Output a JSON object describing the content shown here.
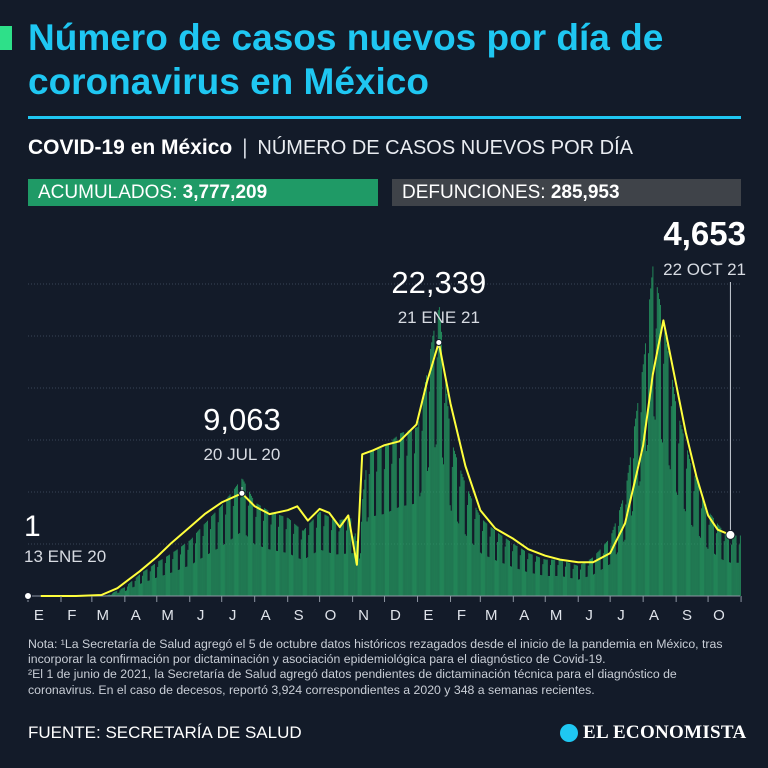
{
  "header": {
    "title": "Número de casos nuevos por día de coronavirus en México",
    "subtitle_bold": "COVID-19 en México",
    "subtitle_sep": "|",
    "subtitle_desc": "NÚMERO DE CASOS NUEVOS POR DÍA"
  },
  "stats": {
    "acumulados_label": "ACUMULADOS:",
    "acumulados_value": "3,777,209",
    "defunciones_label": "DEFUNCIONES:",
    "defunciones_value": "285,953"
  },
  "colors": {
    "background": "#131b29",
    "title": "#1fc7f2",
    "bars": "#27a566",
    "line": "#ffff3c",
    "stat_acumulados": "#1f9a66",
    "stat_defunciones": "#3f4349"
  },
  "chart_data": {
    "type": "bar",
    "title": "",
    "x_unit": "month",
    "x_start": "2020-01",
    "x_end": "2021-10",
    "x_tick_labels": [
      "E",
      "F",
      "M",
      "A",
      "M",
      "J",
      "J",
      "A",
      "S",
      "O",
      "N",
      "D",
      "E",
      "F",
      "M",
      "A",
      "M",
      "J",
      "J",
      "A",
      "S",
      "O"
    ],
    "ylim": [
      0,
      28000
    ],
    "grid": true,
    "legend": "none",
    "annotations": [
      {
        "value": "1",
        "date": "13 ENE 20",
        "date_iso": "2020-01-13"
      },
      {
        "value": "9,063",
        "date": "20 JUL 20",
        "date_iso": "2020-07-20"
      },
      {
        "value": "22,339",
        "date": "21 ENE 21",
        "date_iso": "2021-01-21"
      },
      {
        "value": "4,653",
        "date": "22 OCT 21",
        "date_iso": "2021-10-22"
      }
    ],
    "series": [
      {
        "type": "bars",
        "dates": [
          "2020-01-13",
          "2020-02-15",
          "2020-03-15",
          "2020-04-01",
          "2020-04-15",
          "2020-05-01",
          "2020-05-15",
          "2020-06-01",
          "2020-06-15",
          "2020-07-01",
          "2020-07-20",
          "2020-08-01",
          "2020-08-15",
          "2020-09-01",
          "2020-09-15",
          "2020-10-01",
          "2020-10-15",
          "2020-11-01",
          "2020-11-05",
          "2020-11-15",
          "2020-12-01",
          "2020-12-15",
          "2021-01-01",
          "2021-01-15",
          "2021-01-21",
          "2021-02-01",
          "2021-02-15",
          "2021-03-01",
          "2021-03-15",
          "2021-04-01",
          "2021-04-15",
          "2021-05-01",
          "2021-05-15",
          "2021-06-01",
          "2021-06-15",
          "2021-07-01",
          "2021-07-15",
          "2021-08-01",
          "2021-08-10",
          "2021-08-20",
          "2021-09-01",
          "2021-09-15",
          "2021-10-01",
          "2021-10-15",
          "2021-10-22"
        ],
        "values": [
          1,
          0,
          50,
          700,
          1700,
          2600,
          3300,
          4300,
          5600,
          7000,
          9063,
          7200,
          6500,
          6000,
          5000,
          6500,
          5800,
          6000,
          3700,
          11000,
          11500,
          12500,
          13000,
          20000,
          22339,
          12000,
          8500,
          6000,
          5000,
          4000,
          3300,
          2800,
          2800,
          2300,
          3000,
          4500,
          8000,
          18000,
          25500,
          21000,
          14500,
          10000,
          6500,
          5000,
          4653
        ]
      },
      {
        "type": "line",
        "name": "",
        "dates": [
          "2020-01-13",
          "2020-02-15",
          "2020-03-10",
          "2020-03-25",
          "2020-04-15",
          "2020-05-01",
          "2020-05-15",
          "2020-06-01",
          "2020-06-15",
          "2020-07-01",
          "2020-07-20",
          "2020-08-01",
          "2020-08-15",
          "2020-09-01",
          "2020-09-10",
          "2020-09-20",
          "2020-10-01",
          "2020-10-10",
          "2020-10-20",
          "2020-10-28",
          "2020-11-05",
          "2020-11-10",
          "2020-11-20",
          "2020-12-01",
          "2020-12-15",
          "2020-12-31",
          "2021-01-10",
          "2021-01-21",
          "2021-02-01",
          "2021-02-15",
          "2021-03-01",
          "2021-03-15",
          "2021-04-01",
          "2021-04-15",
          "2021-05-01",
          "2021-05-15",
          "2021-06-01",
          "2021-06-15",
          "2021-07-01",
          "2021-07-15",
          "2021-08-01",
          "2021-08-10",
          "2021-08-20",
          "2021-09-01",
          "2021-09-10",
          "2021-09-20",
          "2021-10-01",
          "2021-10-10",
          "2021-10-22"
        ],
        "values": [
          0,
          0,
          80,
          600,
          1900,
          3000,
          4100,
          5300,
          6300,
          7200,
          7900,
          6900,
          6300,
          6600,
          6900,
          5800,
          6700,
          6400,
          5300,
          6200,
          2400,
          10900,
          11200,
          11600,
          11900,
          13200,
          16500,
          19500,
          14800,
          10000,
          6600,
          5200,
          4400,
          3600,
          3100,
          2800,
          2600,
          2600,
          3300,
          5600,
          11600,
          17000,
          21200,
          16300,
          12600,
          9200,
          6200,
          5100,
          4700
        ]
      }
    ]
  },
  "notes": {
    "line1": "Nota: ¹La Secretaría de Salud agregó el 5 de octubre datos históricos rezagados desde el inicio de la pandemia en México, tras incorporar la confirmación por dictaminación y asociación epidemiológica para el diagnóstico de Covid-19.",
    "line2": "²El 1 de junio de 2021, la Secretaría de Salud agregó datos pendientes de dictaminación técnica para el diagnóstico de coronavirus. En el caso de decesos, reportó 3,924 correspondientes a 2020 y 348 a semanas recientes."
  },
  "footer": {
    "source": "FUENTE: SECRETARÍA DE SALUD",
    "logo_text": "EL ECONOMISTA",
    "logo_icon": "economista-logo-icon"
  }
}
